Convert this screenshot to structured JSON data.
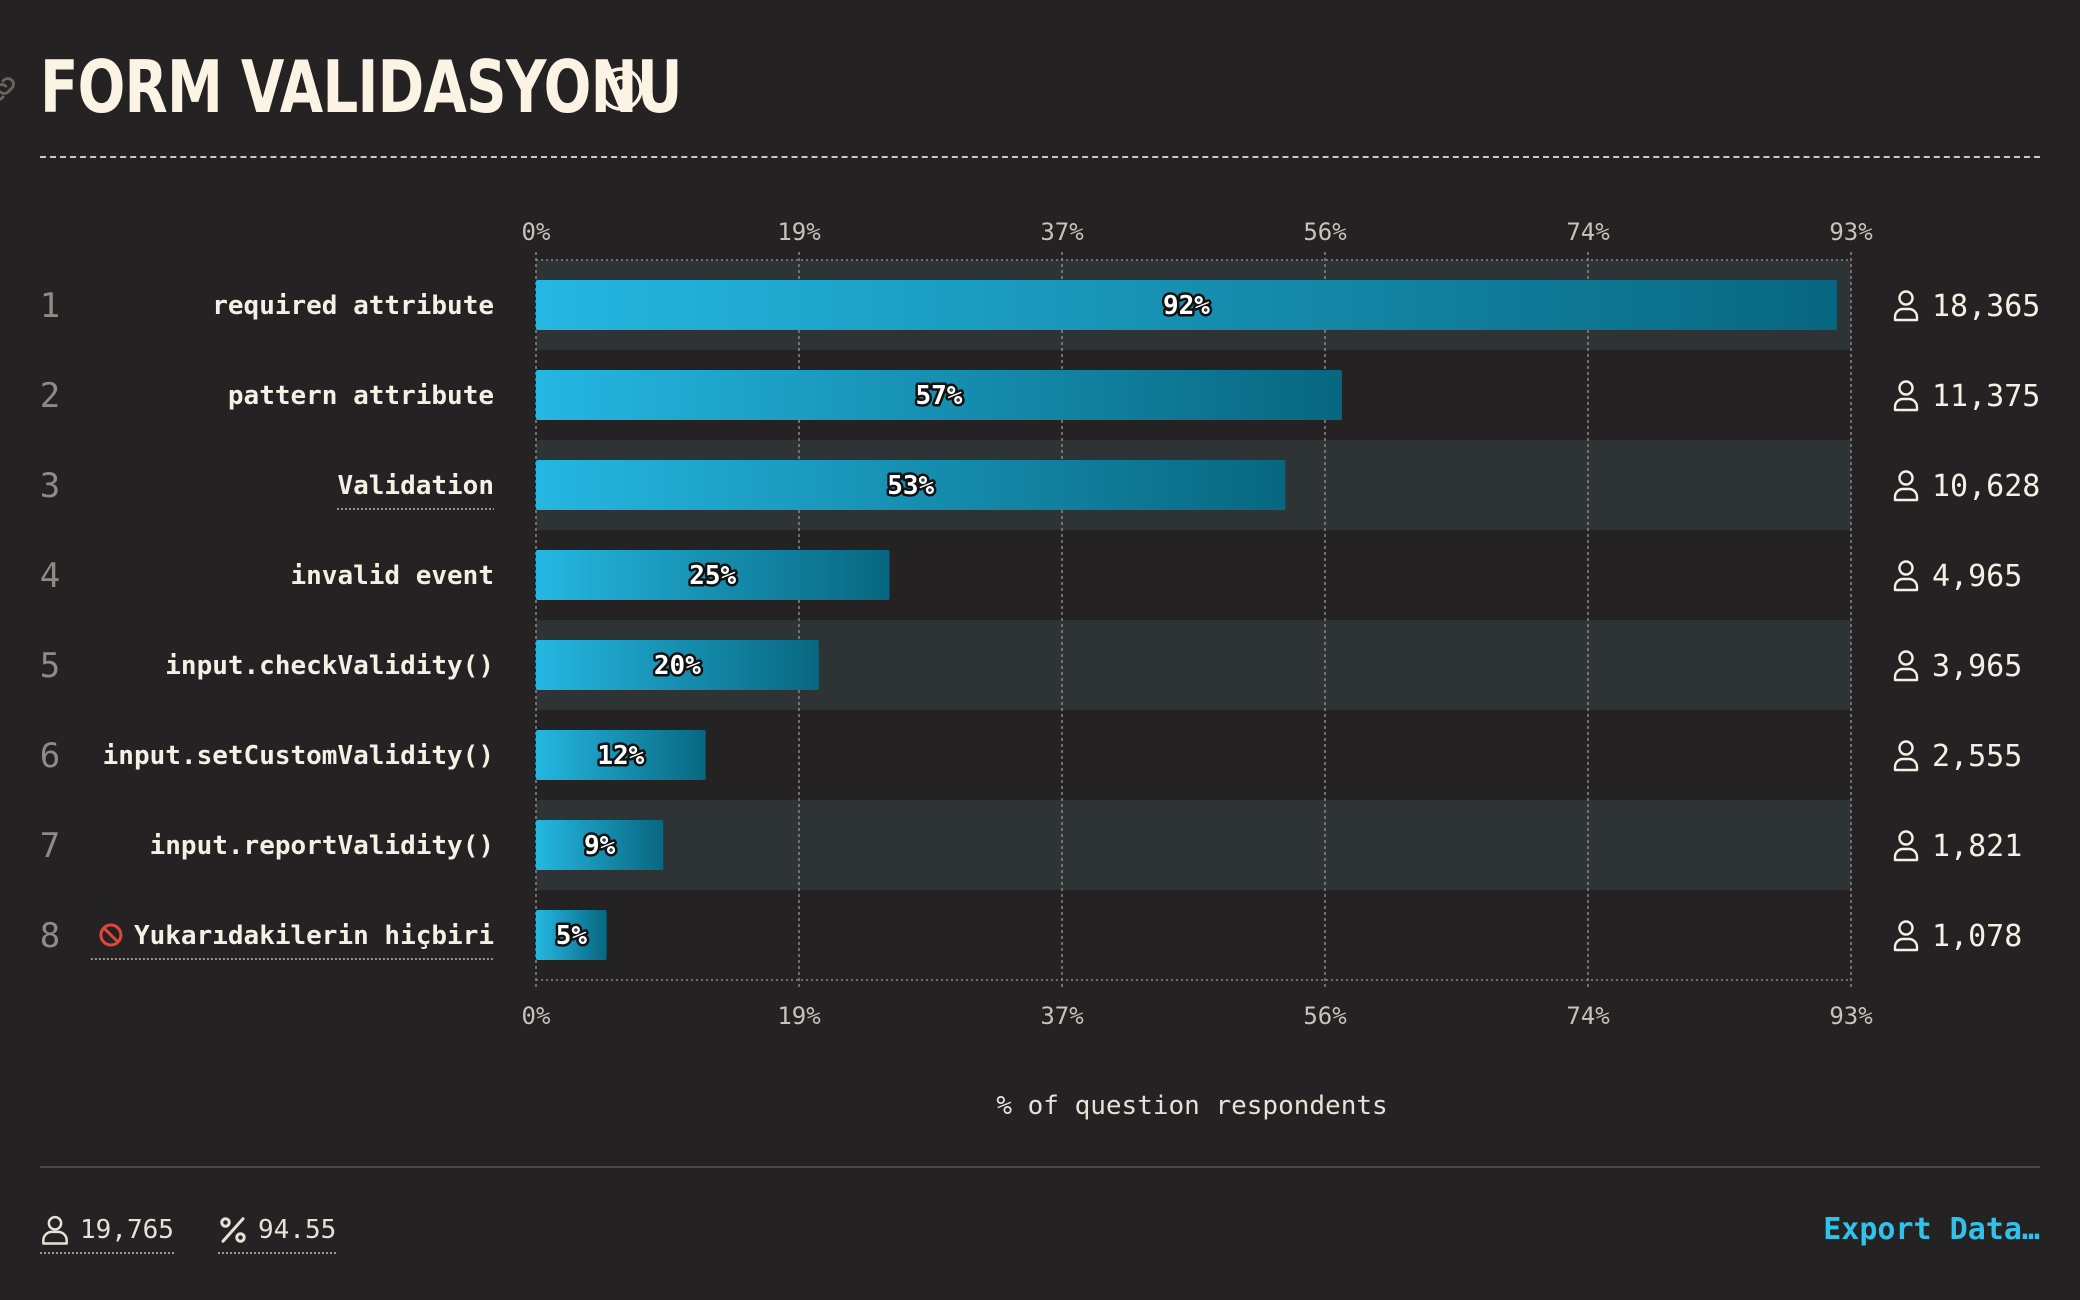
{
  "header": {
    "title": "FORM VALIDASYONU",
    "help_icon": "question-circle-icon",
    "link_icon": "link-icon"
  },
  "chart_data": {
    "type": "bar",
    "orientation": "horizontal",
    "xlabel": "% of question respondents",
    "xticks": [
      "0%",
      "19%",
      "37%",
      "56%",
      "74%",
      "93%"
    ],
    "xlim": [
      0,
      93
    ],
    "grid": true,
    "rows": [
      {
        "rank": "1",
        "label": "required attribute",
        "value": 92,
        "value_label": "92%",
        "count": "18,365",
        "underlined": false
      },
      {
        "rank": "2",
        "label": "pattern attribute",
        "value": 57,
        "value_label": "57%",
        "count": "11,375",
        "underlined": false
      },
      {
        "rank": "3",
        "label": "Validation",
        "value": 53,
        "value_label": "53%",
        "count": "10,628",
        "underlined": true
      },
      {
        "rank": "4",
        "label": "invalid event",
        "value": 25,
        "value_label": "25%",
        "count": "4,965",
        "underlined": false
      },
      {
        "rank": "5",
        "label": "input.checkValidity()",
        "value": 20,
        "value_label": "20%",
        "count": "3,965",
        "underlined": false
      },
      {
        "rank": "6",
        "label": "input.setCustomValidity()",
        "value": 12,
        "value_label": "12%",
        "count": "2,555",
        "underlined": false
      },
      {
        "rank": "7",
        "label": "input.reportValidity()",
        "value": 9,
        "value_label": "9%",
        "count": "1,821",
        "underlined": false
      },
      {
        "rank": "8",
        "label": "Yukarıdakilerin hiçbiri",
        "value": 5,
        "value_label": "5%",
        "count": "1,078",
        "underlined": true,
        "icon": "no-entry-icon"
      }
    ],
    "colors": {
      "bar_start": "#25b7e2",
      "bar_end": "#086780",
      "band": "#2e3336",
      "grid": "#8c8680",
      "label": "#f6efe3",
      "rank": "#8f8a84",
      "tick": "#c9c2b7"
    }
  },
  "footer": {
    "respondents": "19,765",
    "percent": "94.55",
    "export_label": "Export Data…",
    "export_color": "#2fc3ec"
  }
}
